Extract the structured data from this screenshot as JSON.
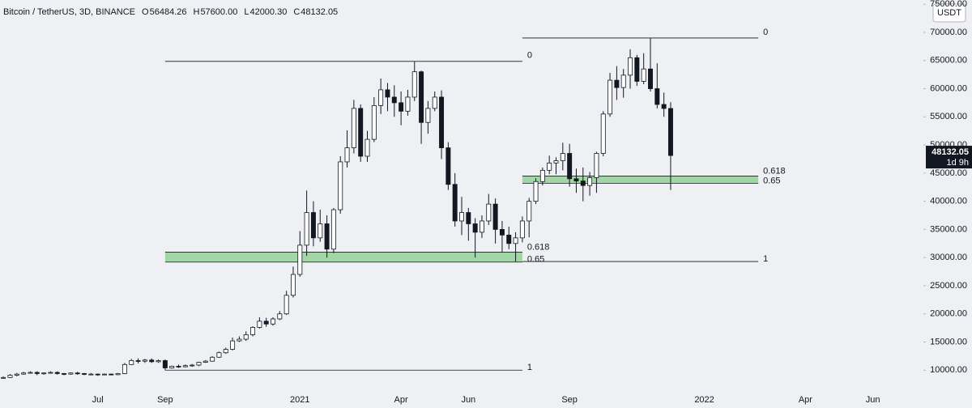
{
  "chart_data": {
    "type": "candlestick",
    "title": "Bitcoin / TetherUS, 3D, BINANCE",
    "ohlc_legend": [
      {
        "letter": "O",
        "text": "56484.26"
      },
      {
        "letter": "H",
        "text": "57600.00"
      },
      {
        "letter": "L",
        "text": "42000.30"
      },
      {
        "letter": "C",
        "text": "48132.05"
      }
    ],
    "currency": "USDT",
    "countdown": "1d 9h",
    "up_color": "#ffffff",
    "down_color": "#131722",
    "wick_color": "#131722",
    "categories": [
      null,
      null,
      null,
      null,
      null,
      null,
      null,
      null,
      null,
      null,
      null,
      null,
      null,
      null,
      "Jul",
      null,
      null,
      null,
      null,
      null,
      null,
      null,
      null,
      null,
      "Sep",
      null,
      null,
      null,
      null,
      null,
      null,
      null,
      null,
      null,
      null,
      null,
      null,
      null,
      null,
      null,
      null,
      null,
      null,
      null,
      "2021",
      null,
      null,
      null,
      null,
      null,
      null,
      null,
      null,
      null,
      null,
      null,
      null,
      null,
      null,
      "Apr",
      null,
      null,
      null,
      null,
      null,
      null,
      null,
      null,
      null,
      "Jun",
      null,
      null,
      null,
      null,
      null,
      null,
      null,
      null,
      null,
      null,
      null,
      null,
      null,
      null,
      "Sep",
      null,
      null,
      null,
      null,
      null,
      null,
      null,
      null,
      null,
      null,
      null,
      null,
      null,
      null,
      null,
      null,
      null,
      null,
      null,
      "2022",
      null,
      null,
      null,
      null,
      null,
      null,
      null,
      null,
      null,
      null,
      null,
      null,
      null,
      null,
      "Apr",
      null,
      null,
      null,
      null,
      null,
      null,
      null,
      null,
      null,
      "Jun",
      null,
      null,
      null,
      null,
      null,
      null,
      null
    ],
    "open": [
      8600,
      8700,
      9100,
      9300,
      9500,
      9600,
      9400,
      9500,
      9600,
      9400,
      9300,
      9500,
      9400,
      9300,
      9300,
      9200,
      9300,
      9200,
      9400,
      11000,
      11700,
      11600,
      11800,
      11500,
      11700,
      10400,
      10700,
      10600,
      10800,
      10900,
      11400,
      11600,
      12300,
      13100,
      13700,
      15200,
      15500,
      16300,
      17600,
      18700,
      18200,
      19100,
      20000,
      23300,
      27000,
      32200,
      38000,
      33500,
      36000,
      31500,
      38500,
      47000,
      49500,
      56500,
      48000,
      51000,
      57000,
      59800,
      58500,
      57500,
      56000,
      58500,
      63000,
      54000,
      56500,
      58500,
      49500,
      43000,
      36500,
      38000,
      36000,
      34500,
      36500,
      39500,
      35000,
      34000,
      32500,
      33500,
      36500,
      40000,
      43500,
      45500,
      46800,
      47200,
      48500,
      44000,
      43600,
      42800,
      44200,
      48500,
      55500,
      61500,
      60200,
      62400,
      65500,
      61300,
      63500,
      60000,
      57200,
      56484.26,
      null,
      null,
      null,
      null,
      null,
      null,
      null,
      null,
      null,
      null,
      null,
      null,
      null,
      null,
      null,
      null,
      null,
      null,
      null,
      null,
      null,
      null,
      null,
      null,
      null,
      null,
      null,
      null,
      null,
      null,
      null,
      null,
      null,
      null,
      null,
      null,
      null
    ],
    "high": [
      8900,
      9300,
      9500,
      9700,
      9800,
      9800,
      9600,
      9800,
      9800,
      9500,
      9600,
      9700,
      9500,
      9500,
      9400,
      9400,
      9400,
      9500,
      11300,
      12000,
      12100,
      12000,
      12100,
      11900,
      11900,
      10800,
      11000,
      11000,
      11100,
      11500,
      11800,
      12500,
      13300,
      14000,
      15800,
      16000,
      16900,
      17800,
      19400,
      19300,
      19400,
      20500,
      24100,
      28400,
      34700,
      41900,
      40000,
      38500,
      37500,
      38800,
      48000,
      52600,
      58000,
      57200,
      52500,
      58500,
      61800,
      61000,
      60600,
      59500,
      59800,
      64800,
      63200,
      57800,
      59500,
      59700,
      50500,
      45000,
      40800,
      38800,
      37000,
      37500,
      41300,
      40500,
      36500,
      35500,
      34500,
      37300,
      40600,
      44100,
      46000,
      48100,
      47800,
      50400,
      50200,
      45800,
      46000,
      45200,
      48800,
      56000,
      62800,
      64000,
      63500,
      67000,
      66000,
      66300,
      69000,
      64500,
      59300,
      57600,
      null,
      null,
      null,
      null,
      null,
      null,
      null,
      null,
      null,
      null,
      null,
      null,
      null,
      null,
      null,
      null,
      null,
      null,
      null,
      null,
      null,
      null,
      null,
      null,
      null,
      null,
      null,
      null,
      null,
      null,
      null,
      null,
      null,
      null,
      null,
      null,
      null
    ],
    "low": [
      8500,
      8600,
      8900,
      9200,
      9400,
      9100,
      9200,
      9400,
      9200,
      9100,
      9200,
      9200,
      9100,
      9100,
      9000,
      9100,
      9100,
      9100,
      9300,
      10900,
      11200,
      11300,
      11300,
      11300,
      10000,
      10300,
      10400,
      10500,
      10600,
      10700,
      11300,
      11500,
      12200,
      12900,
      13500,
      15000,
      15200,
      16000,
      17400,
      17700,
      17900,
      18900,
      19800,
      22900,
      26600,
      30300,
      32000,
      32800,
      30000,
      30800,
      37800,
      46000,
      48500,
      47000,
      47000,
      50500,
      55500,
      56000,
      55000,
      53500,
      55200,
      57800,
      50200,
      52000,
      56000,
      47500,
      42000,
      35500,
      34000,
      33000,
      30000,
      33500,
      35800,
      32500,
      31000,
      31500,
      29300,
      32700,
      33600,
      39500,
      42800,
      44800,
      44800,
      45500,
      42600,
      41500,
      40000,
      41000,
      41500,
      48000,
      55000,
      58000,
      58400,
      60000,
      60500,
      60800,
      59500,
      56500,
      55000,
      42000.3,
      null,
      null,
      null,
      null,
      null,
      null,
      null,
      null,
      null,
      null,
      null,
      null,
      null,
      null,
      null,
      null,
      null,
      null,
      null,
      null,
      null,
      null,
      null,
      null,
      null,
      null,
      null,
      null,
      null,
      null,
      null,
      null,
      null,
      null,
      null,
      null,
      null
    ],
    "close": [
      8700,
      9100,
      9300,
      9500,
      9600,
      9400,
      9500,
      9600,
      9400,
      9300,
      9500,
      9400,
      9300,
      9300,
      9200,
      9300,
      9200,
      9400,
      11000,
      11700,
      11600,
      11800,
      11500,
      11700,
      10400,
      10700,
      10600,
      10800,
      10900,
      11400,
      11600,
      12300,
      13100,
      13700,
      15200,
      15500,
      16300,
      17600,
      18700,
      18200,
      19100,
      20000,
      23300,
      27000,
      32200,
      38000,
      33500,
      36000,
      31500,
      38500,
      47000,
      49500,
      56500,
      48000,
      51000,
      57000,
      59800,
      58500,
      57500,
      56000,
      58500,
      63000,
      54000,
      56500,
      58500,
      49500,
      43000,
      36500,
      38000,
      36000,
      34500,
      36500,
      39500,
      35000,
      34000,
      32500,
      33500,
      36500,
      40000,
      43500,
      45500,
      46800,
      47200,
      48500,
      44000,
      43600,
      42800,
      44200,
      48500,
      55500,
      61500,
      60200,
      62400,
      65500,
      61300,
      63500,
      60000,
      57200,
      56484.26,
      48132.05,
      null,
      null,
      null,
      null,
      null,
      null,
      null,
      null,
      null,
      null,
      null,
      null,
      null,
      null,
      null,
      null,
      null,
      null,
      null,
      null,
      null,
      null,
      null,
      null,
      null,
      null,
      null,
      null,
      null,
      null,
      null,
      null,
      null,
      null,
      null,
      null,
      null
    ],
    "ylim": [
      6300,
      75750
    ],
    "yticks": [
      {
        "value": 10000,
        "label": "10000.00"
      },
      {
        "value": 15000,
        "label": "15000.00"
      },
      {
        "value": 20000,
        "label": "20000.00"
      },
      {
        "value": 25000,
        "label": "25000.00"
      },
      {
        "value": 30000,
        "label": "30000.00"
      },
      {
        "value": 35000,
        "label": "35000.00"
      },
      {
        "value": 40000,
        "label": "40000.00"
      },
      {
        "value": 45000,
        "label": "45000.00"
      },
      {
        "value": 50000,
        "label": "50000.00"
      },
      {
        "value": 55000,
        "label": "55000.00"
      },
      {
        "value": 60000,
        "label": "60000.00"
      },
      {
        "value": 65000,
        "label": "65000.00"
      },
      {
        "value": 70000,
        "label": "70000.00"
      },
      {
        "value": 75000,
        "label": "75000.00"
      }
    ],
    "fib_retracements": [
      {
        "high": 64850,
        "low": 10000,
        "levels": [
          0,
          0.618,
          0.65,
          1
        ],
        "x_range": [
          24,
          77
        ],
        "zone_color": "#8fcf94"
      },
      {
        "high": 69000,
        "low": 29300,
        "levels": [
          0,
          0.618,
          0.65,
          1
        ],
        "x_range": [
          77,
          112
        ],
        "zone_color": "#8fcf94"
      }
    ]
  }
}
